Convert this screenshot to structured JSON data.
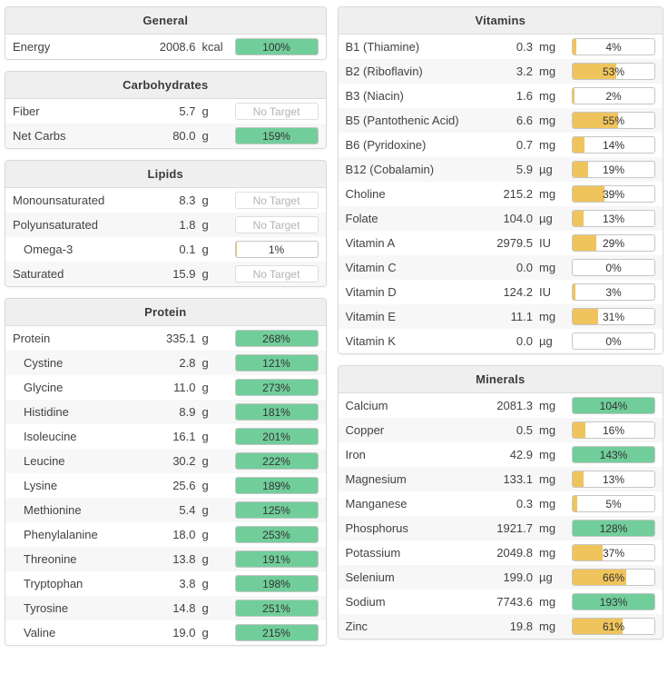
{
  "labels": {
    "no_target": "No Target"
  },
  "colors": {
    "green": "#71ce9b",
    "yellow": "#f0c45c"
  },
  "columns": [
    {
      "panels": [
        {
          "title": "General",
          "rows": [
            {
              "name": "Energy",
              "value": "2008.6",
              "unit": "kcal",
              "percent": "100%"
            }
          ]
        },
        {
          "title": "Carbohydrates",
          "rows": [
            {
              "name": "Fiber",
              "value": "5.7",
              "unit": "g",
              "no_target": true
            },
            {
              "name": "Net Carbs",
              "value": "80.0",
              "unit": "g",
              "percent": "159%"
            }
          ]
        },
        {
          "title": "Lipids",
          "rows": [
            {
              "name": "Monounsaturated",
              "value": "8.3",
              "unit": "g",
              "no_target": true
            },
            {
              "name": "Polyunsaturated",
              "value": "1.8",
              "unit": "g",
              "no_target": true
            },
            {
              "name": "Omega-3",
              "value": "0.1",
              "unit": "g",
              "percent": "1%",
              "indent": true
            },
            {
              "name": "Saturated",
              "value": "15.9",
              "unit": "g",
              "no_target": true
            }
          ]
        },
        {
          "title": "Protein",
          "rows": [
            {
              "name": "Protein",
              "value": "335.1",
              "unit": "g",
              "percent": "268%"
            },
            {
              "name": "Cystine",
              "value": "2.8",
              "unit": "g",
              "percent": "121%",
              "indent": true
            },
            {
              "name": "Glycine",
              "value": "11.0",
              "unit": "g",
              "percent": "273%",
              "indent": true
            },
            {
              "name": "Histidine",
              "value": "8.9",
              "unit": "g",
              "percent": "181%",
              "indent": true
            },
            {
              "name": "Isoleucine",
              "value": "16.1",
              "unit": "g",
              "percent": "201%",
              "indent": true
            },
            {
              "name": "Leucine",
              "value": "30.2",
              "unit": "g",
              "percent": "222%",
              "indent": true
            },
            {
              "name": "Lysine",
              "value": "25.6",
              "unit": "g",
              "percent": "189%",
              "indent": true
            },
            {
              "name": "Methionine",
              "value": "5.4",
              "unit": "g",
              "percent": "125%",
              "indent": true
            },
            {
              "name": "Phenylalanine",
              "value": "18.0",
              "unit": "g",
              "percent": "253%",
              "indent": true
            },
            {
              "name": "Threonine",
              "value": "13.8",
              "unit": "g",
              "percent": "191%",
              "indent": true
            },
            {
              "name": "Tryptophan",
              "value": "3.8",
              "unit": "g",
              "percent": "198%",
              "indent": true
            },
            {
              "name": "Tyrosine",
              "value": "14.8",
              "unit": "g",
              "percent": "251%",
              "indent": true
            },
            {
              "name": "Valine",
              "value": "19.0",
              "unit": "g",
              "percent": "215%",
              "indent": true
            }
          ]
        }
      ]
    },
    {
      "panels": [
        {
          "title": "Vitamins",
          "rows": [
            {
              "name": "B1 (Thiamine)",
              "value": "0.3",
              "unit": "mg",
              "percent": "4%"
            },
            {
              "name": "B2 (Riboflavin)",
              "value": "3.2",
              "unit": "mg",
              "percent": "53%"
            },
            {
              "name": "B3 (Niacin)",
              "value": "1.6",
              "unit": "mg",
              "percent": "2%"
            },
            {
              "name": "B5 (Pantothenic Acid)",
              "value": "6.6",
              "unit": "mg",
              "percent": "55%"
            },
            {
              "name": "B6 (Pyridoxine)",
              "value": "0.7",
              "unit": "mg",
              "percent": "14%"
            },
            {
              "name": "B12 (Cobalamin)",
              "value": "5.9",
              "unit": "µg",
              "percent": "19%"
            },
            {
              "name": "Choline",
              "value": "215.2",
              "unit": "mg",
              "percent": "39%"
            },
            {
              "name": "Folate",
              "value": "104.0",
              "unit": "µg",
              "percent": "13%"
            },
            {
              "name": "Vitamin A",
              "value": "2979.5",
              "unit": "IU",
              "percent": "29%"
            },
            {
              "name": "Vitamin C",
              "value": "0.0",
              "unit": "mg",
              "percent": "0%"
            },
            {
              "name": "Vitamin D",
              "value": "124.2",
              "unit": "IU",
              "percent": "3%"
            },
            {
              "name": "Vitamin E",
              "value": "11.1",
              "unit": "mg",
              "percent": "31%"
            },
            {
              "name": "Vitamin K",
              "value": "0.0",
              "unit": "µg",
              "percent": "0%"
            }
          ]
        },
        {
          "title": "Minerals",
          "rows": [
            {
              "name": "Calcium",
              "value": "2081.3",
              "unit": "mg",
              "percent": "104%"
            },
            {
              "name": "Copper",
              "value": "0.5",
              "unit": "mg",
              "percent": "16%"
            },
            {
              "name": "Iron",
              "value": "42.9",
              "unit": "mg",
              "percent": "143%"
            },
            {
              "name": "Magnesium",
              "value": "133.1",
              "unit": "mg",
              "percent": "13%"
            },
            {
              "name": "Manganese",
              "value": "0.3",
              "unit": "mg",
              "percent": "5%"
            },
            {
              "name": "Phosphorus",
              "value": "1921.7",
              "unit": "mg",
              "percent": "128%"
            },
            {
              "name": "Potassium",
              "value": "2049.8",
              "unit": "mg",
              "percent": "37%"
            },
            {
              "name": "Selenium",
              "value": "199.0",
              "unit": "µg",
              "percent": "66%"
            },
            {
              "name": "Sodium",
              "value": "7743.6",
              "unit": "mg",
              "percent": "193%"
            },
            {
              "name": "Zinc",
              "value": "19.8",
              "unit": "mg",
              "percent": "61%"
            }
          ]
        }
      ]
    }
  ]
}
